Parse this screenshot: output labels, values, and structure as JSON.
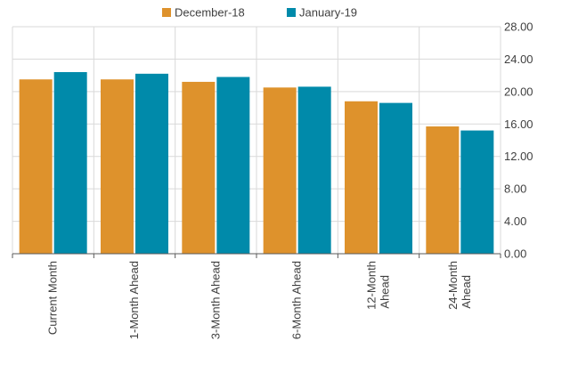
{
  "chart_data": {
    "type": "bar",
    "categories": [
      [
        "Current Month"
      ],
      [
        "1-Month Ahead"
      ],
      [
        "3-Month Ahead"
      ],
      [
        "6-Month Ahead"
      ],
      [
        "12-Month",
        "Ahead"
      ],
      [
        "24-Month",
        "Ahead"
      ]
    ],
    "series": [
      {
        "name": "December-18",
        "color": "#DE922C",
        "values": [
          21.5,
          21.5,
          21.2,
          20.5,
          18.8,
          15.7
        ]
      },
      {
        "name": "January-19",
        "color": "#008AAA",
        "values": [
          22.4,
          22.2,
          21.8,
          20.6,
          18.6,
          15.2
        ]
      }
    ],
    "y_ticks": [
      "0.00",
      "4.00",
      "8.00",
      "12.00",
      "16.00",
      "20.00",
      "24.00",
      "28.00"
    ],
    "ylim": [
      0,
      28
    ],
    "y_axis_side": "right",
    "grid": true,
    "legend_position": "top"
  }
}
